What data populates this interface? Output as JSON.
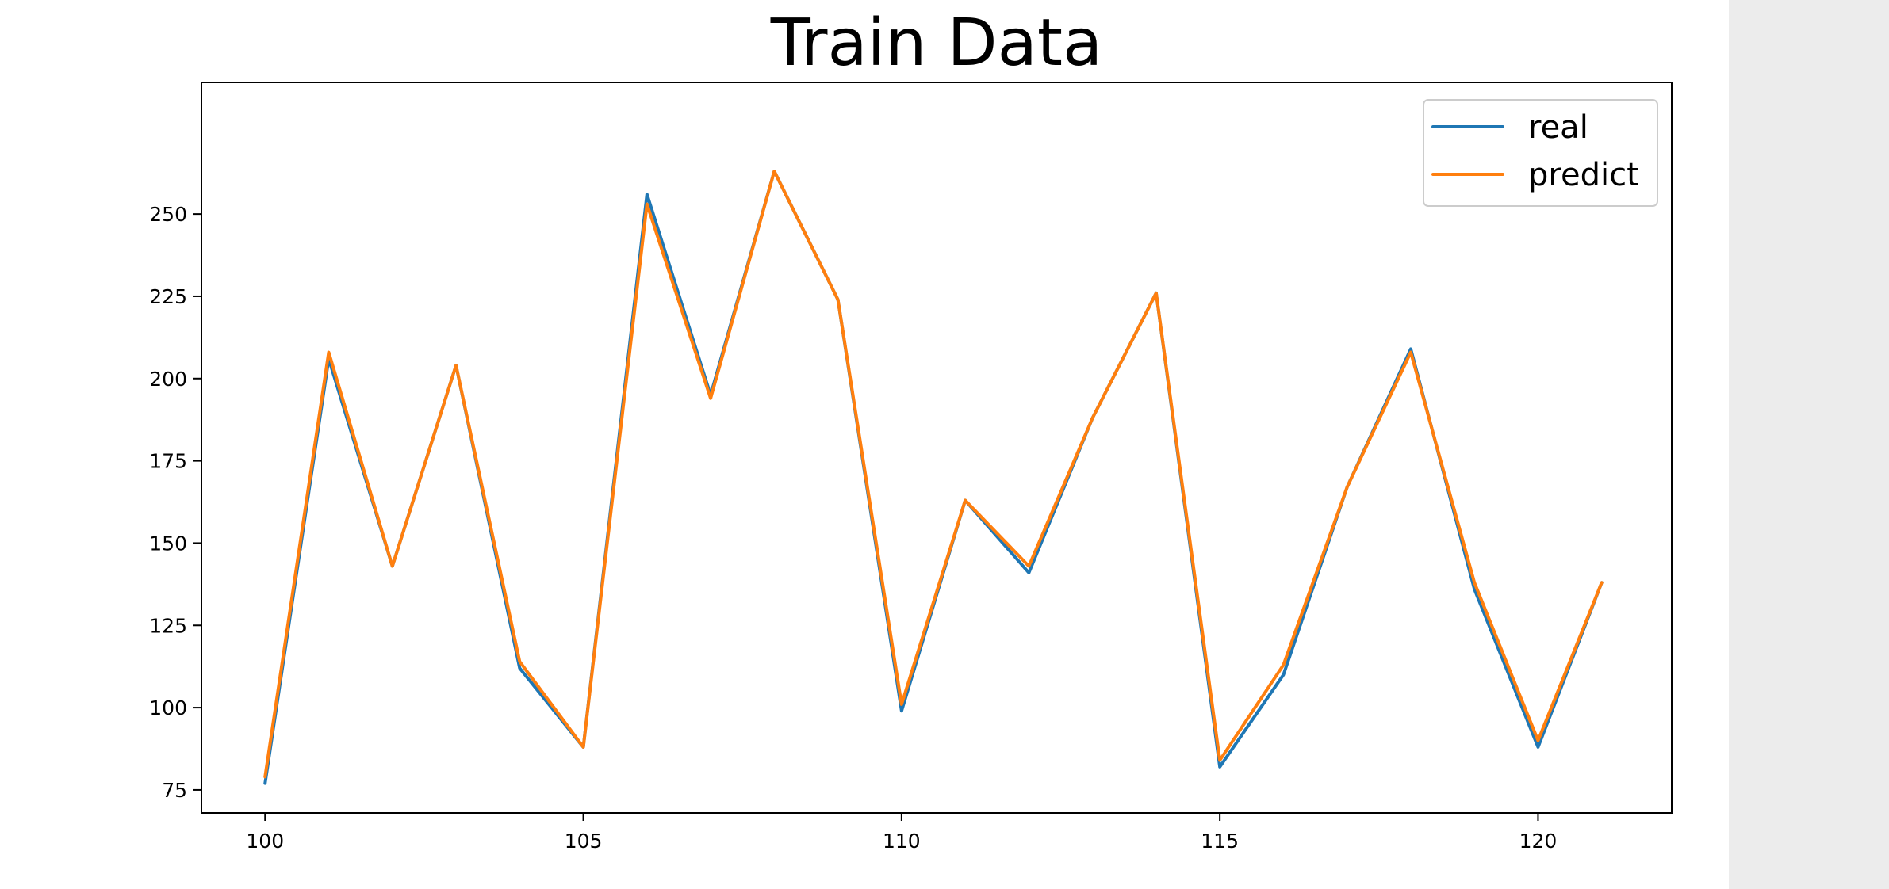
{
  "chart_data": {
    "type": "line",
    "title": "Train Data",
    "xlabel": "",
    "ylabel": "",
    "xlim": [
      99,
      122.1
    ],
    "ylim": [
      68,
      290
    ],
    "x_ticks": [
      100,
      105,
      110,
      115,
      120
    ],
    "y_ticks": [
      75,
      100,
      125,
      150,
      175,
      200,
      225,
      250
    ],
    "x": [
      100,
      101,
      102,
      103,
      104,
      105,
      106,
      107,
      108,
      109,
      110,
      111,
      112,
      113,
      114,
      115,
      116,
      117,
      118,
      119,
      120,
      121
    ],
    "series": [
      {
        "name": "real",
        "color": "#1f77b4",
        "values": [
          77,
          206,
          143,
          204,
          112,
          88,
          256,
          195,
          263,
          224,
          99,
          163,
          141,
          188,
          226,
          82,
          110,
          167,
          209,
          136,
          88,
          138
        ]
      },
      {
        "name": "predict",
        "color": "#ff7f0e",
        "values": [
          79,
          208,
          143,
          204,
          114,
          88,
          253,
          194,
          263,
          224,
          101,
          163,
          143,
          188,
          226,
          84,
          113,
          167,
          208,
          138,
          90,
          138
        ]
      }
    ],
    "grid": false,
    "legend_position": "top-right"
  },
  "colors": {
    "side_panel": "#ececec"
  }
}
